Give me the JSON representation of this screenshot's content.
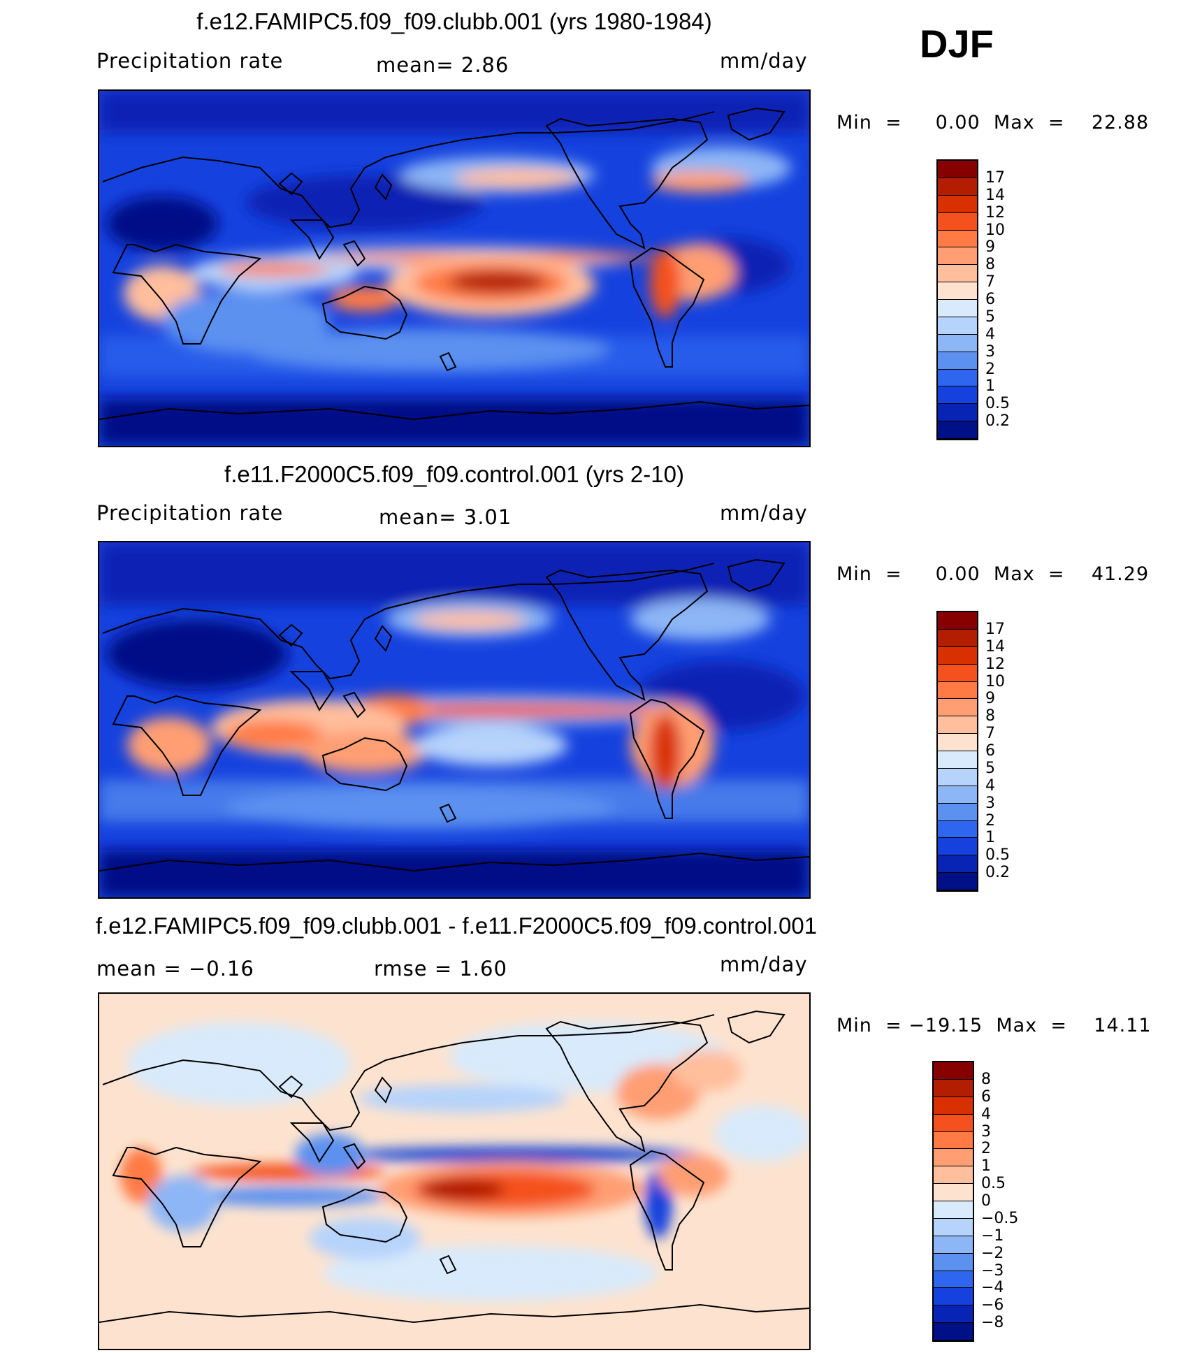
{
  "season": "DJF",
  "panels": [
    {
      "id": "model",
      "title": "f.e12.FAMIPC5.f09_f09.clubb.001 (yrs 1980-1984)",
      "left_label": "Precipitation  rate",
      "mid_label": "mean=     2.86",
      "units": "mm/day",
      "minmax": "Min  =     0.00  Max  =    22.88"
    },
    {
      "id": "control",
      "title": "f.e11.F2000C5.f09_f09.control.001 (yrs 2-10)",
      "left_label": "Precipitation  rate",
      "mid_label": "mean=     3.01",
      "units": "mm/day",
      "minmax": "Min  =     0.00  Max  =    41.29"
    },
    {
      "id": "difference",
      "title": "f.e12.FAMIPC5.f09_f09.clubb.001 - f.e11.F2000C5.f09_f09.control.001",
      "left_label": "mean  =   −0.16",
      "mid_label": "rmse  =     1.60",
      "units": "mm/day",
      "minmax": "Min  = −19.15  Max  =    14.11"
    }
  ],
  "colorbars": {
    "precip": {
      "labels": [
        "17",
        "14",
        "12",
        "10",
        "9",
        "8",
        "7",
        "6",
        "5",
        "4",
        "3",
        "2",
        "1",
        "0.5",
        "0.2"
      ],
      "colors": [
        "#870000",
        "#b31e00",
        "#d93000",
        "#f4511e",
        "#ff7a45",
        "#ff9e73",
        "#ffbe9c",
        "#fde3cf",
        "#d8eafb",
        "#b6d3fb",
        "#8db6f6",
        "#5c91f0",
        "#2f66ef",
        "#1542de",
        "#0724b4",
        "#001187"
      ]
    },
    "diff": {
      "labels": [
        "8",
        "6",
        "4",
        "3",
        "2",
        "1",
        "0.5",
        "0",
        "−0.5",
        "−1",
        "−2",
        "−3",
        "−4",
        "−6",
        "−8"
      ],
      "colors": [
        "#870000",
        "#b31e00",
        "#d93000",
        "#f4511e",
        "#ff7a45",
        "#ff9e73",
        "#ffbe9c",
        "#fde3cf",
        "#d8eafb",
        "#b6d3fb",
        "#8db6f6",
        "#5c91f0",
        "#2f66ef",
        "#1542de",
        "#0724b4",
        "#001187"
      ]
    }
  },
  "chart_data": [
    {
      "type": "heatmap",
      "title": "f.e12.FAMIPC5.f09_f09.clubb.001 (yrs 1980-1984)",
      "variable": "Precipitation  rate",
      "units": "mm/day",
      "mean": 2.86,
      "min": 0.0,
      "max": 22.88,
      "contour_levels": [
        0.2,
        0.5,
        1,
        2,
        3,
        4,
        5,
        6,
        7,
        8,
        9,
        10,
        12,
        14,
        17
      ]
    },
    {
      "type": "heatmap",
      "title": "f.e11.F2000C5.f09_f09.control.001 (yrs 2-10)",
      "variable": "Precipitation  rate",
      "units": "mm/day",
      "mean": 3.01,
      "min": 0.0,
      "max": 41.29,
      "contour_levels": [
        0.2,
        0.5,
        1,
        2,
        3,
        4,
        5,
        6,
        7,
        8,
        9,
        10,
        12,
        14,
        17
      ]
    },
    {
      "type": "heatmap",
      "title": "f.e12.FAMIPC5.f09_f09.clubb.001 - f.e11.F2000C5.f09_f09.control.001",
      "units": "mm/day",
      "mean": -0.16,
      "rmse": 1.6,
      "min": -19.15,
      "max": 14.11,
      "contour_levels": [
        -8,
        -6,
        -4,
        -3,
        -2,
        -1,
        -0.5,
        0,
        0.5,
        1,
        2,
        3,
        4,
        6,
        8
      ]
    }
  ]
}
